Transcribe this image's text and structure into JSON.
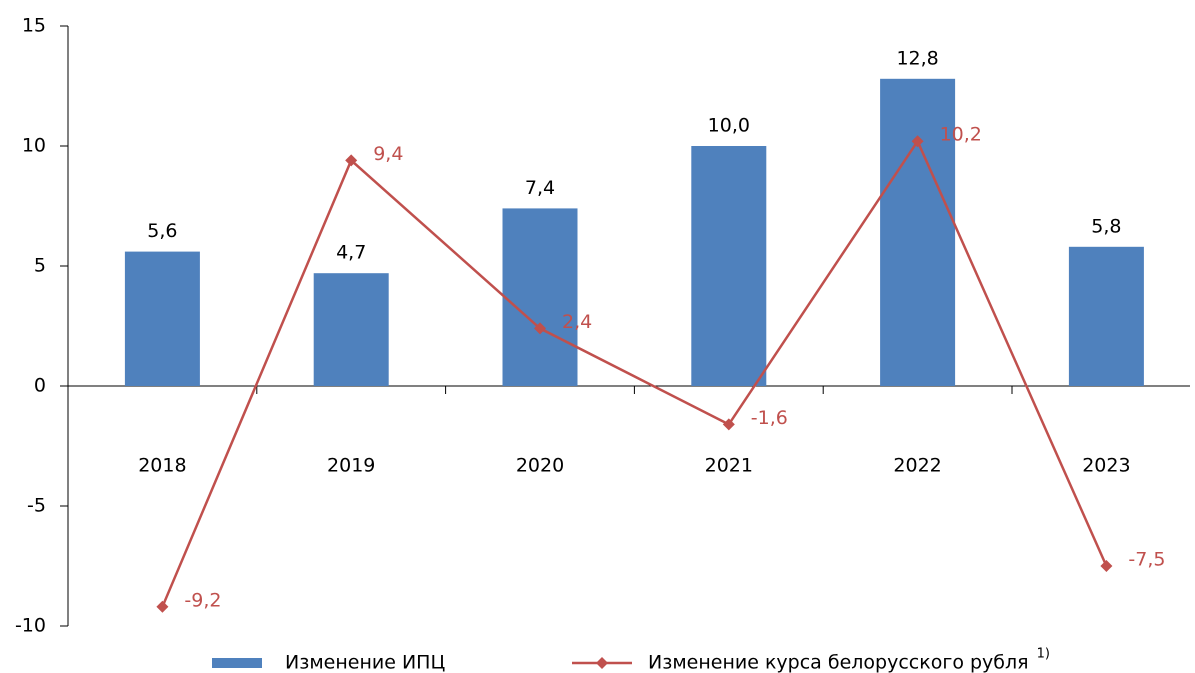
{
  "chart_data": {
    "type": "bar",
    "categories": [
      "2018",
      "2019",
      "2020",
      "2021",
      "2022",
      "2023"
    ],
    "series": [
      {
        "name": "Изменение ИПЦ",
        "type": "bar",
        "color": "#4f81bd",
        "values": [
          5.6,
          4.7,
          7.4,
          10.0,
          12.8,
          5.8
        ],
        "value_labels": [
          "5,6",
          "4,7",
          "7,4",
          "10,0",
          "12,8",
          "5,8"
        ]
      },
      {
        "name": "Изменение курса белорусского рубля",
        "footnote_marker": "1)",
        "type": "line",
        "color": "#c0504d",
        "values": [
          -9.2,
          9.4,
          2.4,
          -1.6,
          10.2,
          -7.5
        ],
        "value_labels": [
          "-9,2",
          "9,4",
          "2,4",
          "-1,6",
          "10,2",
          "-7,5"
        ]
      }
    ],
    "ylim": [
      -10,
      15
    ],
    "yticks": [
      15,
      10,
      5,
      0,
      -5,
      -10
    ],
    "grid": false,
    "legend": "bottom"
  }
}
